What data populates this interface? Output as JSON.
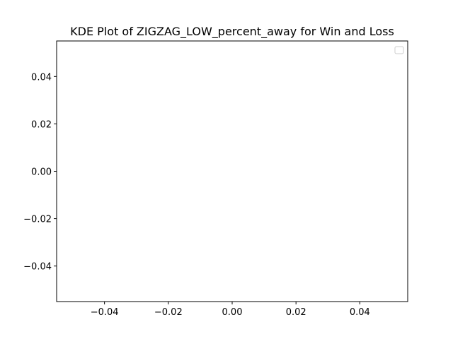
{
  "chart_data": {
    "type": "line",
    "title": "KDE Plot of ZIGZAG_LOW_percent_away for Win and Loss",
    "xlabel": "",
    "ylabel": "",
    "xlim": [
      -0.055,
      0.055
    ],
    "ylim": [
      -0.055,
      0.055
    ],
    "x_ticks": [
      -0.04,
      -0.02,
      0.0,
      0.02,
      0.04
    ],
    "x_tick_labels": [
      "−0.04",
      "−0.02",
      "0.00",
      "0.02",
      "0.04"
    ],
    "y_ticks": [
      -0.04,
      -0.02,
      0.0,
      0.02,
      0.04
    ],
    "y_tick_labels": [
      "−0.04",
      "−0.02",
      "0.00",
      "0.02",
      "0.04"
    ],
    "series": [],
    "grid": false,
    "legend": {
      "placement": "top-right",
      "entries": []
    }
  }
}
